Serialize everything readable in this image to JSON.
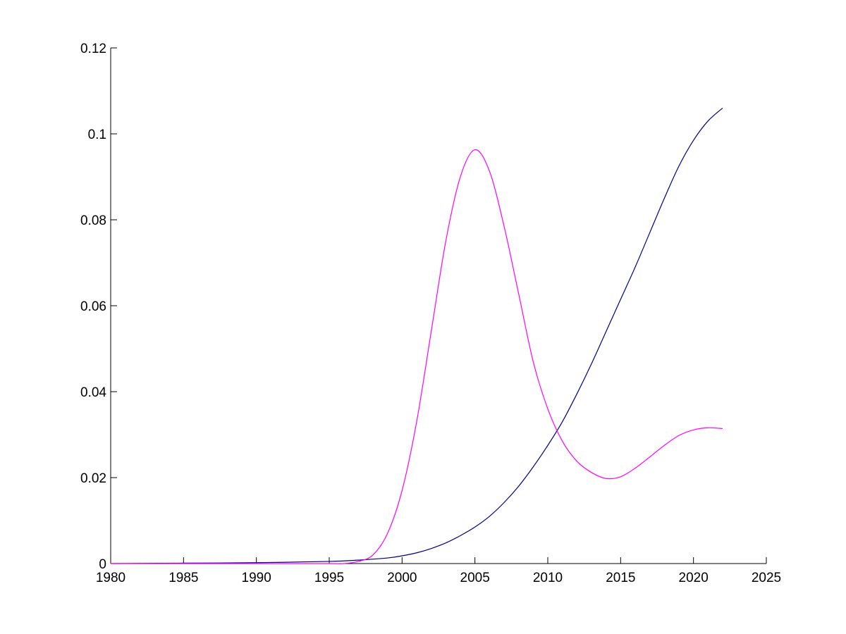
{
  "chart_data": {
    "type": "line",
    "title": "",
    "xlabel": "",
    "ylabel": "",
    "xlim": [
      1980,
      2025
    ],
    "ylim": [
      0,
      0.12
    ],
    "xticks": [
      1980,
      1985,
      1990,
      1995,
      2000,
      2005,
      2010,
      2015,
      2020,
      2025
    ],
    "xtick_labels": [
      "1980",
      "1985",
      "1990",
      "1995",
      "2000",
      "2005",
      "2010",
      "2015",
      "2020",
      "2025"
    ],
    "yticks": [
      0,
      0.02,
      0.04,
      0.06,
      0.08,
      0.1,
      0.12
    ],
    "ytick_labels": [
      "0",
      "0.02",
      "0.04",
      "0.06",
      "0.08",
      "0.1",
      "0.12"
    ],
    "grid": false,
    "legend": "none",
    "series": [
      {
        "color": "#00007f",
        "x": [
          1980,
          1985,
          1990,
          1995,
          1997,
          1999,
          2000,
          2001,
          2002,
          2003,
          2004,
          2005,
          2006,
          2007,
          2008,
          2009,
          2010,
          2011,
          2012,
          2013,
          2014,
          2015,
          2016,
          2017,
          2018,
          2019,
          2020,
          2021,
          2022
        ],
        "y": [
          0,
          0.0001,
          0.0002,
          0.0005,
          0.0008,
          0.0013,
          0.0018,
          0.0025,
          0.0035,
          0.0048,
          0.0065,
          0.0085,
          0.011,
          0.0142,
          0.018,
          0.0225,
          0.0275,
          0.033,
          0.0395,
          0.0465,
          0.054,
          0.0615,
          0.069,
          0.077,
          0.085,
          0.0925,
          0.0985,
          0.103,
          0.106
        ]
      },
      {
        "color": "#ff00ff",
        "x": [
          1980,
          1985,
          1990,
          1995,
          1996,
          1997,
          1998,
          1999,
          2000,
          2001,
          2002,
          2003,
          2004,
          2005,
          2006,
          2007,
          2008,
          2009,
          2010,
          2011,
          2012,
          2013,
          2014,
          2015,
          2016,
          2017,
          2018,
          2019,
          2020,
          2021,
          2022
        ],
        "y": [
          0,
          0,
          0,
          0,
          0,
          0.0005,
          0.002,
          0.007,
          0.017,
          0.033,
          0.054,
          0.075,
          0.09,
          0.0963,
          0.0913,
          0.0785,
          0.0628,
          0.047,
          0.036,
          0.0285,
          0.0238,
          0.0212,
          0.0198,
          0.0202,
          0.0222,
          0.0248,
          0.0275,
          0.0298,
          0.0311,
          0.0316,
          0.0314
        ]
      }
    ]
  }
}
